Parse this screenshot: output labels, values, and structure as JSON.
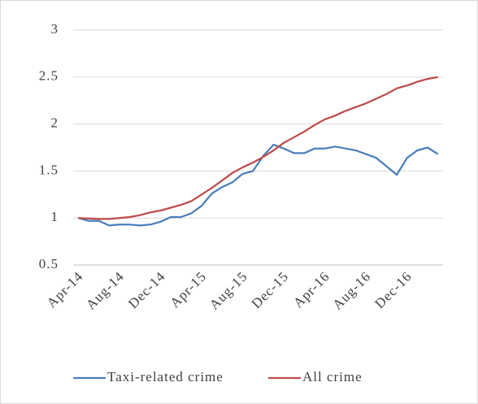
{
  "chart_data": {
    "type": "line",
    "categories": [
      "Apr-14",
      null,
      null,
      null,
      "Aug-14",
      null,
      null,
      null,
      "Dec-14",
      null,
      null,
      null,
      "Apr-15",
      null,
      null,
      null,
      "Aug-15",
      null,
      null,
      null,
      "Dec-15",
      null,
      null,
      null,
      "Apr-16",
      null,
      null,
      null,
      "Aug-16",
      null,
      null,
      null,
      "Dec-16",
      null,
      null,
      null
    ],
    "series": [
      {
        "name": "Taxi-related crime",
        "color": "#4a7ebb",
        "values": [
          1.0,
          0.97,
          0.97,
          0.92,
          0.93,
          0.93,
          0.92,
          0.93,
          0.96,
          1.01,
          1.01,
          1.05,
          1.13,
          1.26,
          1.33,
          1.38,
          1.47,
          1.5,
          1.66,
          1.78,
          1.74,
          1.69,
          1.69,
          1.74,
          1.74,
          1.76,
          1.74,
          1.72,
          1.68,
          1.64,
          1.55,
          1.46,
          1.64,
          1.72,
          1.75,
          1.68
        ]
      },
      {
        "name": "All crime",
        "color": "#be4b48",
        "values": [
          1.0,
          0.995,
          0.99,
          0.99,
          1.0,
          1.01,
          1.03,
          1.06,
          1.08,
          1.11,
          1.14,
          1.18,
          1.25,
          1.32,
          1.4,
          1.48,
          1.54,
          1.59,
          1.65,
          1.72,
          1.8,
          1.86,
          1.92,
          1.99,
          2.05,
          2.09,
          2.14,
          2.18,
          2.22,
          2.27,
          2.32,
          2.38,
          2.41,
          2.45,
          2.48,
          2.5
        ]
      }
    ],
    "ylim": [
      0.5,
      3
    ],
    "yticks": [
      0.5,
      1,
      1.5,
      2,
      2.5,
      3
    ],
    "grid": true,
    "legend": "bottom"
  }
}
